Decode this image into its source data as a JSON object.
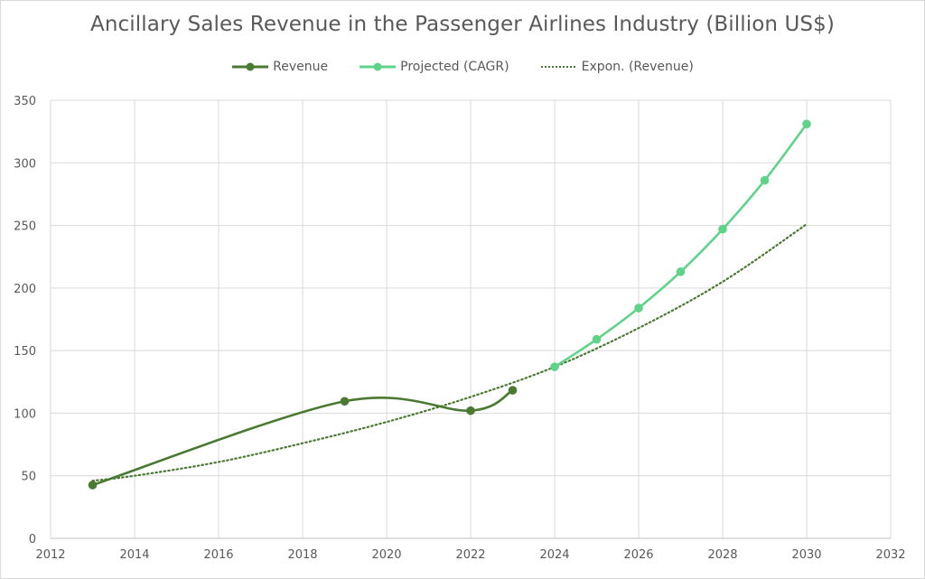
{
  "chart_data": {
    "type": "line",
    "title": "Ancillary Sales Revenue in the Passenger Airlines Industry (Billion US$)",
    "xlabel": "",
    "ylabel": "",
    "xlim": [
      2012,
      2032
    ],
    "ylim": [
      0,
      350
    ],
    "x_ticks": [
      2012,
      2014,
      2016,
      2018,
      2020,
      2022,
      2024,
      2026,
      2028,
      2030,
      2032
    ],
    "y_ticks": [
      0,
      50,
      100,
      150,
      200,
      250,
      300,
      350
    ],
    "grid": true,
    "legend_position": "top",
    "series": [
      {
        "name": "Revenue",
        "color": "#4a7a32",
        "style": "solid-markers",
        "points": [
          [
            2013,
            42.6
          ],
          [
            2019,
            109.5
          ],
          [
            2022,
            102.0
          ],
          [
            2023,
            118.3
          ]
        ]
      },
      {
        "name": "Projected (CAGR)",
        "color": "#5fd38a",
        "style": "solid-markers",
        "points": [
          [
            2024,
            137
          ],
          [
            2025,
            159
          ],
          [
            2026,
            184
          ],
          [
            2027,
            213
          ],
          [
            2028,
            247
          ],
          [
            2029,
            286
          ],
          [
            2030,
            331
          ]
        ]
      },
      {
        "name": "Expon. (Revenue)",
        "color": "#4a7a32",
        "style": "dotted",
        "points": [
          [
            2013,
            46
          ],
          [
            2014,
            50
          ],
          [
            2016,
            61
          ],
          [
            2018,
            76
          ],
          [
            2020,
            93
          ],
          [
            2022,
            113
          ],
          [
            2024,
            137
          ],
          [
            2026,
            168
          ],
          [
            2028,
            205
          ],
          [
            2030,
            251
          ]
        ]
      }
    ]
  }
}
